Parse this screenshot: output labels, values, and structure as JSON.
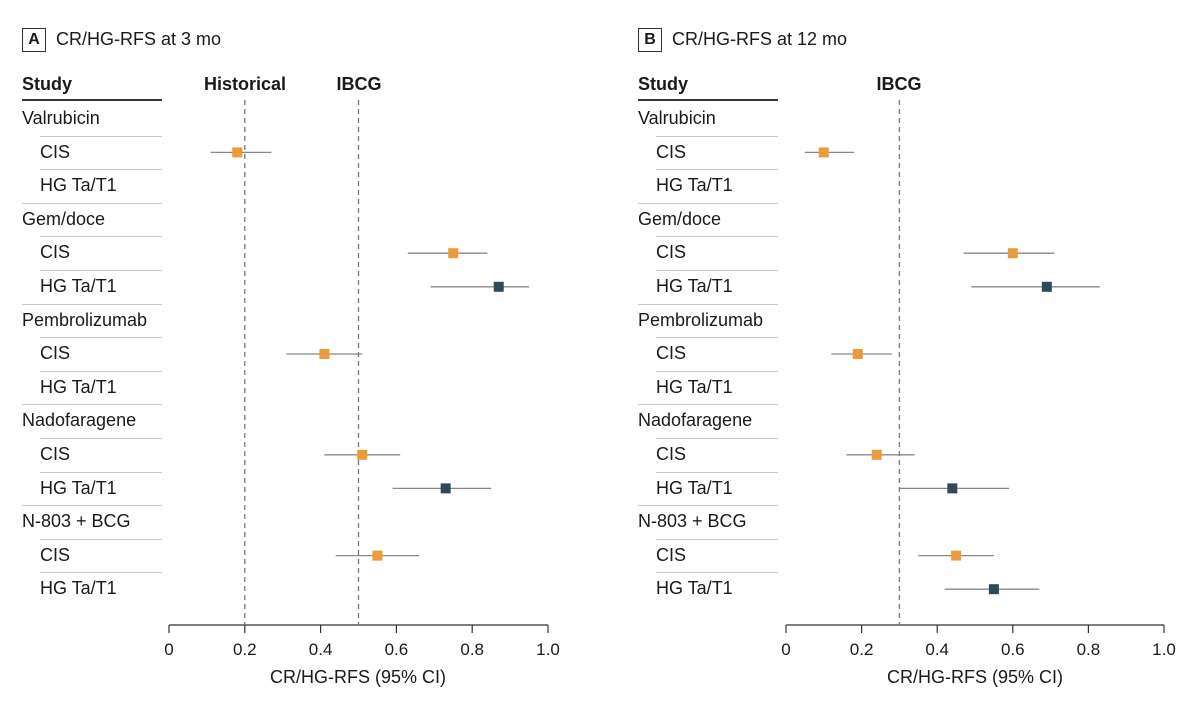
{
  "chart_data": [
    {
      "type": "forest",
      "panel_label": "A",
      "title": "CR/HG-RFS at 3 mo",
      "study_header": "Study",
      "xlabel": "CR/HG-RFS (95% CI)",
      "xlim": [
        0,
        1.0
      ],
      "xticks": [
        "0",
        "0.2",
        "0.4",
        "0.6",
        "0.8",
        "1.0"
      ],
      "reference_lines": [
        {
          "label": "Historical",
          "x": 0.2
        },
        {
          "label": "IBCG",
          "x": 0.5
        }
      ],
      "rows": [
        {
          "label": "Valrubicin",
          "kind": "group"
        },
        {
          "label": "CIS",
          "kind": "sub",
          "cohort": "CIS",
          "estimate": 0.18,
          "ci": [
            0.11,
            0.27
          ]
        },
        {
          "label": "HG Ta/T1",
          "kind": "sub"
        },
        {
          "label": "Gem/doce",
          "kind": "group"
        },
        {
          "label": "CIS",
          "kind": "sub",
          "cohort": "CIS",
          "estimate": 0.75,
          "ci": [
            0.63,
            0.84
          ]
        },
        {
          "label": "HG Ta/T1",
          "kind": "sub",
          "cohort": "HG Ta/T1",
          "estimate": 0.87,
          "ci": [
            0.69,
            0.95
          ]
        },
        {
          "label": "Pembrolizumab",
          "kind": "group"
        },
        {
          "label": "CIS",
          "kind": "sub",
          "cohort": "CIS",
          "estimate": 0.41,
          "ci": [
            0.31,
            0.51
          ]
        },
        {
          "label": "HG Ta/T1",
          "kind": "sub"
        },
        {
          "label": "Nadofaragene",
          "kind": "group"
        },
        {
          "label": "CIS",
          "kind": "sub",
          "cohort": "CIS",
          "estimate": 0.51,
          "ci": [
            0.41,
            0.61
          ]
        },
        {
          "label": "HG Ta/T1",
          "kind": "sub",
          "cohort": "HG Ta/T1",
          "estimate": 0.73,
          "ci": [
            0.59,
            0.85
          ]
        },
        {
          "label": "N-803 + BCG",
          "kind": "group"
        },
        {
          "label": "CIS",
          "kind": "sub",
          "cohort": "CIS",
          "estimate": 0.55,
          "ci": [
            0.44,
            0.66
          ]
        },
        {
          "label": "HG Ta/T1",
          "kind": "sub"
        }
      ]
    },
    {
      "type": "forest",
      "panel_label": "B",
      "title": "CR/HG-RFS at 12 mo",
      "study_header": "Study",
      "xlabel": "CR/HG-RFS (95% CI)",
      "xlim": [
        0,
        1.0
      ],
      "xticks": [
        "0",
        "0.2",
        "0.4",
        "0.6",
        "0.8",
        "1.0"
      ],
      "reference_lines": [
        {
          "label": "IBCG",
          "x": 0.3
        }
      ],
      "rows": [
        {
          "label": "Valrubicin",
          "kind": "group"
        },
        {
          "label": "CIS",
          "kind": "sub",
          "cohort": "CIS",
          "estimate": 0.1,
          "ci": [
            0.05,
            0.18
          ]
        },
        {
          "label": "HG Ta/T1",
          "kind": "sub"
        },
        {
          "label": "Gem/doce",
          "kind": "group"
        },
        {
          "label": "CIS",
          "kind": "sub",
          "cohort": "CIS",
          "estimate": 0.6,
          "ci": [
            0.47,
            0.71
          ]
        },
        {
          "label": "HG Ta/T1",
          "kind": "sub",
          "cohort": "HG Ta/T1",
          "estimate": 0.69,
          "ci": [
            0.49,
            0.83
          ]
        },
        {
          "label": "Pembrolizumab",
          "kind": "group"
        },
        {
          "label": "CIS",
          "kind": "sub",
          "cohort": "CIS",
          "estimate": 0.19,
          "ci": [
            0.12,
            0.28
          ]
        },
        {
          "label": "HG Ta/T1",
          "kind": "sub"
        },
        {
          "label": "Nadofaragene",
          "kind": "group"
        },
        {
          "label": "CIS",
          "kind": "sub",
          "cohort": "CIS",
          "estimate": 0.24,
          "ci": [
            0.16,
            0.34
          ]
        },
        {
          "label": "HG Ta/T1",
          "kind": "sub",
          "cohort": "HG Ta/T1",
          "estimate": 0.44,
          "ci": [
            0.3,
            0.59
          ]
        },
        {
          "label": "N-803 + BCG",
          "kind": "group"
        },
        {
          "label": "CIS",
          "kind": "sub",
          "cohort": "CIS",
          "estimate": 0.45,
          "ci": [
            0.35,
            0.55
          ]
        },
        {
          "label": "HG Ta/T1",
          "kind": "sub",
          "cohort": "HG Ta/T1",
          "estimate": 0.55,
          "ci": [
            0.42,
            0.67
          ]
        }
      ]
    }
  ],
  "colors": {
    "CIS": "#EC9A3C",
    "HG Ta/T1": "#2E4A5A",
    "ci_line": "#888888",
    "reference_line": "#777777",
    "axis": "#333333"
  }
}
